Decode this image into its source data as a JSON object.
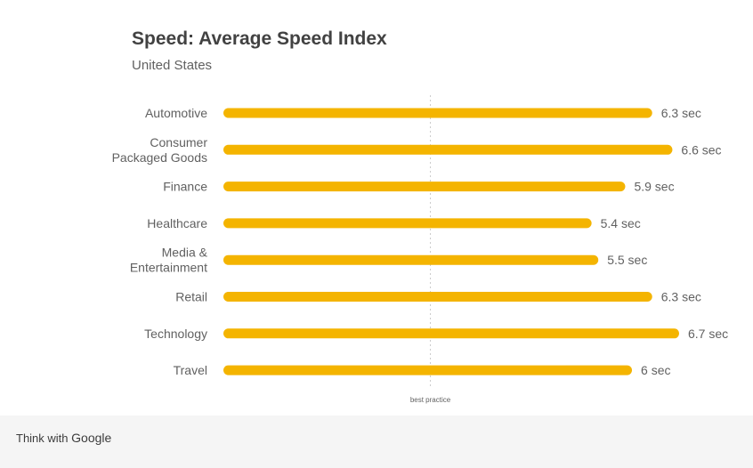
{
  "chart_data": {
    "type": "bar",
    "orientation": "horizontal",
    "title": "Speed: Average Speed Index",
    "subtitle": "United States",
    "categories": [
      [
        "Automotive"
      ],
      [
        "Consumer",
        "Packaged Goods"
      ],
      [
        "Finance"
      ],
      [
        "Healthcare"
      ],
      [
        "Media &",
        "Entertainment"
      ],
      [
        "Retail"
      ],
      [
        "Technology"
      ],
      [
        "Travel"
      ]
    ],
    "values": [
      6.3,
      6.6,
      5.9,
      5.4,
      5.5,
      6.3,
      6.7,
      6
    ],
    "value_labels": [
      "6.3 sec",
      "6.6 sec",
      "5.9 sec",
      "5.4 sec",
      "5.5 sec",
      "6.3 sec",
      "6.7 sec",
      "6 sec"
    ],
    "reference_line": {
      "value": 3,
      "label": "best practice"
    },
    "xlim": [
      0,
      6.7
    ],
    "grid": false,
    "colors": {
      "bar": "#f4b400",
      "reference": "#cccccc",
      "text": "#616161"
    }
  },
  "footer": {
    "prefix": "Think with ",
    "brand": "Google"
  }
}
